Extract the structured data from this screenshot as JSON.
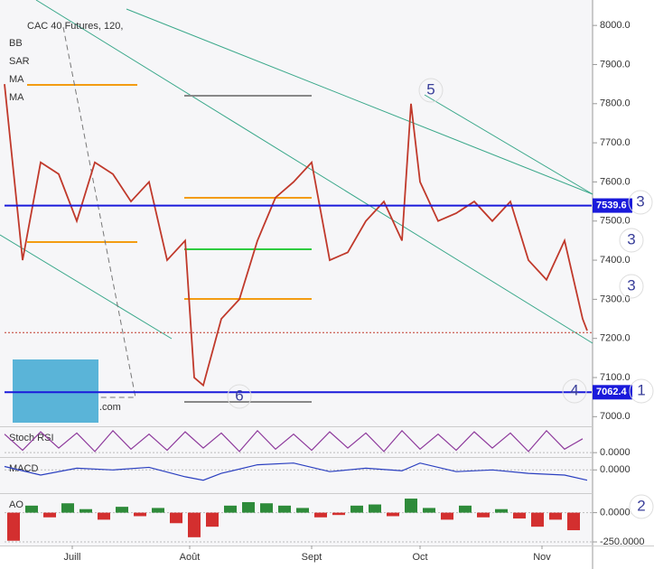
{
  "header": {
    "title": "CAC 40 Futures, 120,",
    "indicators": [
      "BB",
      "SAR",
      "MA",
      "MA"
    ],
    "watermark": ".com"
  },
  "annotations": [
    "5",
    "6",
    "3",
    "3",
    "3",
    "4",
    "1",
    "2"
  ],
  "chart_data": [
    {
      "type": "line",
      "name": "price",
      "color": "#c0392b",
      "x": [
        0,
        4,
        8,
        12,
        16,
        20,
        24,
        28,
        32,
        36,
        40,
        42,
        44,
        48,
        52,
        56,
        60,
        64,
        68,
        72,
        76,
        80,
        84,
        88,
        90,
        92,
        96,
        100,
        104,
        108,
        112,
        116,
        120,
        124,
        128,
        129
      ],
      "values": [
        7850,
        7400,
        7650,
        7620,
        7500,
        7650,
        7620,
        7550,
        7600,
        7400,
        7450,
        7100,
        7080,
        7250,
        7300,
        7450,
        7560,
        7600,
        7650,
        7400,
        7420,
        7500,
        7550,
        7450,
        7800,
        7600,
        7500,
        7520,
        7550,
        7500,
        7550,
        7400,
        7350,
        7450,
        7250,
        7220
      ],
      "hlines": [
        7539.6,
        7062.4
      ],
      "dotted_line": 7215,
      "xlim": [
        0,
        130
      ],
      "ylim": [
        6980,
        8065
      ],
      "yticks": [
        {
          "value": 7000,
          "label": "7000.0"
        },
        {
          "value": 7100,
          "label": "7100.0"
        },
        {
          "value": 7200,
          "label": "7200.0"
        },
        {
          "value": 7300,
          "label": "7300.0"
        },
        {
          "value": 7400,
          "label": "7400.0"
        },
        {
          "value": 7500,
          "label": "7500.0"
        },
        {
          "value": 7600,
          "label": "7600.0"
        },
        {
          "value": 7700,
          "label": "7700.0"
        },
        {
          "value": 7800,
          "label": "7800.0"
        },
        {
          "value": 7900,
          "label": "7900.0"
        },
        {
          "value": 8000,
          "label": "8000.0"
        }
      ],
      "xticks": [
        {
          "value": 15,
          "label": "Juill"
        },
        {
          "value": 41,
          "label": "Août"
        },
        {
          "value": 68,
          "label": "Sept"
        },
        {
          "value": 92,
          "label": "Oct"
        },
        {
          "value": 119,
          "label": "Nov"
        }
      ]
    },
    {
      "type": "line",
      "name": "Stoch RSI",
      "color": "#8e3a9c",
      "x": [
        0,
        4,
        8,
        12,
        16,
        20,
        24,
        28,
        32,
        36,
        40,
        44,
        48,
        52,
        56,
        60,
        64,
        68,
        72,
        76,
        80,
        84,
        88,
        92,
        96,
        100,
        104,
        108,
        112,
        116,
        120,
        124,
        128
      ],
      "values": [
        80,
        10,
        90,
        20,
        85,
        5,
        95,
        15,
        80,
        10,
        90,
        20,
        85,
        5,
        95,
        15,
        80,
        10,
        90,
        20,
        85,
        5,
        95,
        15,
        80,
        10,
        90,
        20,
        85,
        5,
        95,
        15,
        60
      ],
      "xlim": [
        0,
        130
      ],
      "ylim": [
        -15,
        110
      ],
      "yticks": [
        {
          "value": 0,
          "label": "0.0000"
        }
      ]
    },
    {
      "type": "line",
      "name": "MACD",
      "color": "#2a3fc0",
      "x": [
        0,
        8,
        16,
        24,
        32,
        40,
        44,
        48,
        56,
        64,
        72,
        80,
        88,
        92,
        100,
        108,
        116,
        124,
        129
      ],
      "values": [
        20,
        -30,
        10,
        0,
        15,
        -40,
        -60,
        -20,
        30,
        40,
        -10,
        10,
        -5,
        40,
        -10,
        0,
        -20,
        -30,
        -60
      ],
      "xlim": [
        0,
        130
      ],
      "ylim": [
        -130,
        70
      ],
      "yticks": [
        {
          "value": 0,
          "label": "0.0000"
        }
      ]
    },
    {
      "type": "bar",
      "name": "AO",
      "colors": [
        "#2e8b3a",
        "#d32f2f"
      ],
      "x": [
        2,
        6,
        10,
        14,
        18,
        22,
        26,
        30,
        34,
        38,
        42,
        46,
        50,
        54,
        58,
        62,
        66,
        70,
        74,
        78,
        82,
        86,
        90,
        94,
        98,
        102,
        106,
        110,
        114,
        118,
        122,
        126
      ],
      "values": [
        -240,
        60,
        -40,
        80,
        30,
        -60,
        50,
        -30,
        40,
        -90,
        -210,
        -120,
        60,
        90,
        80,
        60,
        40,
        -40,
        -20,
        60,
        70,
        -30,
        120,
        40,
        -60,
        60,
        -40,
        30,
        -50,
        -120,
        -60,
        -150
      ],
      "xlim": [
        0,
        130
      ],
      "ylim": [
        -273,
        159
      ],
      "yticks": [
        {
          "value": 0,
          "label": "0.0000"
        },
        {
          "value": -250,
          "label": "-250.0000"
        }
      ]
    }
  ]
}
